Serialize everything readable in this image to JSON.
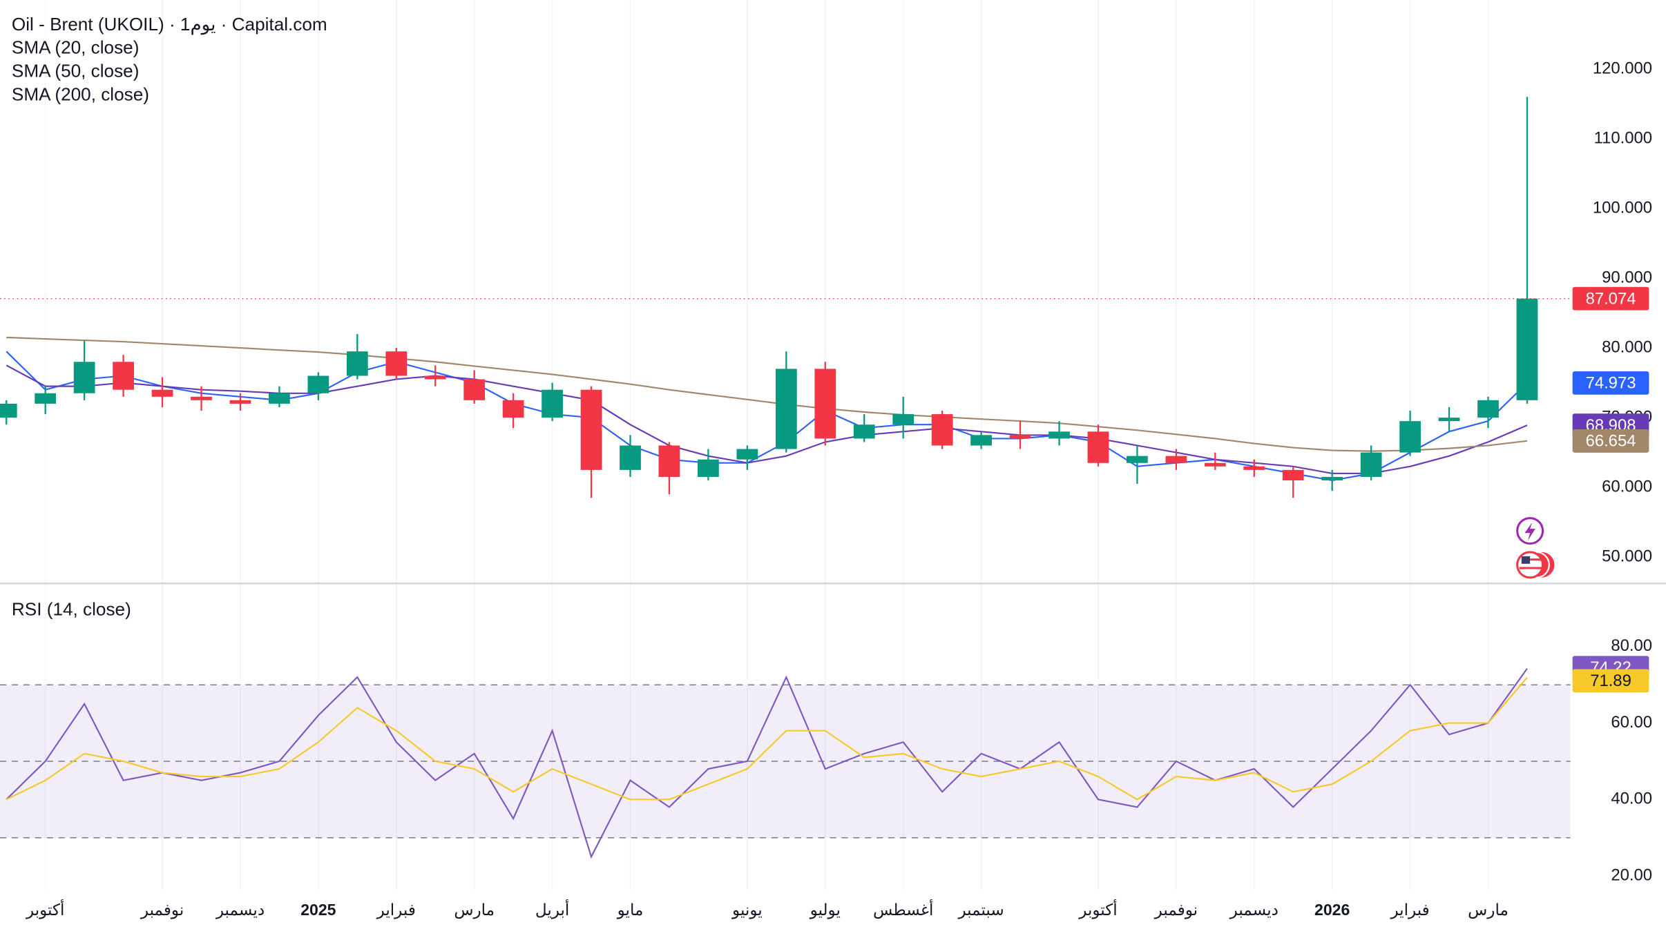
{
  "chart_data": [
    {
      "type": "candlestick",
      "title": "Oil - Brent (UKOIL) · 1يوم · Capital.com",
      "categories": [
        null,
        "أكتوبر",
        null,
        null,
        "نوفمبر",
        null,
        "ديسمبر",
        null,
        "2025",
        null,
        "فبراير",
        null,
        "مارس",
        null,
        "أبريل",
        null,
        "مايو",
        null,
        null,
        "يونيو",
        null,
        "يوليو",
        null,
        "أغسطس",
        null,
        "سبتمبر",
        null,
        null,
        "أكتوبر",
        null,
        "نوفمبر",
        null,
        "ديسمبر",
        null,
        "2026",
        null,
        "فبراير",
        null,
        "مارس",
        null
      ],
      "open": [
        70,
        72,
        73.5,
        78,
        74,
        73,
        72.5,
        72,
        73.5,
        76,
        79.5,
        76,
        75.5,
        72.5,
        70,
        74,
        62.5,
        66,
        61.5,
        64,
        65.5,
        77,
        67,
        69,
        70.5,
        66,
        67.5,
        67,
        68,
        63.5,
        64.5,
        63.5,
        63,
        62.5,
        61,
        61.5,
        65,
        69.5,
        70,
        72.5
      ],
      "high": [
        72.5,
        74.5,
        81,
        79,
        75.8,
        74.5,
        73.5,
        74.5,
        76.5,
        82,
        80,
        77.5,
        76.8,
        73.5,
        75,
        74.5,
        67.5,
        66.5,
        65.5,
        66,
        79.5,
        78,
        70.5,
        73,
        71,
        68,
        69.5,
        69.5,
        69,
        66,
        65.5,
        65,
        64,
        63,
        62.5,
        66,
        71,
        71.5,
        73,
        116
      ],
      "low": [
        69,
        70.5,
        72.5,
        73,
        71.5,
        71,
        71,
        71.5,
        72.5,
        75.5,
        75.5,
        74.5,
        72,
        68.5,
        69.5,
        58.5,
        61.5,
        59,
        61,
        62.5,
        65,
        66,
        66.5,
        67,
        65.5,
        65.5,
        65.5,
        66,
        63,
        60.5,
        62.5,
        62.5,
        61.5,
        58.5,
        59.5,
        61,
        64.5,
        68,
        68.5,
        72
      ],
      "close": [
        72,
        73.5,
        78,
        74,
        73,
        72.5,
        72,
        73.5,
        76,
        79.5,
        76,
        75.5,
        72.5,
        70,
        74,
        62.5,
        66,
        61.5,
        64,
        65.5,
        77,
        67,
        69,
        70.5,
        66,
        67.5,
        67,
        68,
        63.5,
        64.5,
        63.5,
        63,
        62.5,
        61,
        61.5,
        65,
        69.5,
        70,
        72.5,
        87.074
      ],
      "up_color": "#089981",
      "down_color": "#f23645",
      "last_price_color": "#f23645",
      "series": [
        {
          "name": "SMA (20, close)",
          "color": "#2962ff",
          "values": [
            79.5,
            74,
            75.5,
            76,
            74.5,
            73.5,
            73,
            72.5,
            73.5,
            76.5,
            78,
            76.5,
            75,
            72,
            70.5,
            70,
            66,
            64,
            63.5,
            63.5,
            66.5,
            71,
            68.5,
            69,
            69,
            67,
            67,
            67.5,
            66.5,
            63,
            63.5,
            64,
            63,
            62,
            61,
            62,
            65,
            68,
            69.5,
            74.973
          ]
        },
        {
          "name": "SMA (50, close)",
          "color": "#673ab7",
          "values": [
            77.5,
            74.5,
            74.5,
            75,
            74.5,
            74,
            73.8,
            73.5,
            73.5,
            74.5,
            75.5,
            76,
            75.5,
            74.5,
            73.5,
            72.5,
            69,
            66,
            64.5,
            63.5,
            64.5,
            66.5,
            67.5,
            68,
            68.5,
            68,
            67.5,
            67.5,
            67,
            66,
            65,
            64,
            63.5,
            63,
            62,
            62,
            63,
            64.5,
            66.5,
            68.908
          ]
        },
        {
          "name": "SMA (200, close)",
          "color": "#a1866a",
          "values": [
            81.5,
            81.3,
            81.1,
            80.9,
            80.6,
            80.3,
            80,
            79.7,
            79.4,
            79,
            78.5,
            78,
            77.4,
            76.8,
            76.2,
            75.5,
            74.8,
            74,
            73.3,
            72.6,
            71.9,
            71.3,
            70.8,
            70.4,
            70.1,
            69.8,
            69.5,
            69.2,
            68.7,
            68.2,
            67.6,
            67,
            66.3,
            65.7,
            65.3,
            65.2,
            65.3,
            65.6,
            66,
            66.654
          ]
        }
      ],
      "ylim": [
        46.3,
        129.9
      ],
      "yticks": [
        {
          "value": 50,
          "label": "50.000"
        },
        {
          "value": 60,
          "label": "60.000"
        },
        {
          "value": 70,
          "label": "70.000"
        },
        {
          "value": 80,
          "label": "80.000"
        },
        {
          "value": 90,
          "label": "90.000"
        },
        {
          "value": 100,
          "label": "100.000"
        },
        {
          "value": 110,
          "label": "110.000"
        },
        {
          "value": 120,
          "label": "120.000"
        }
      ],
      "grid": true
    },
    {
      "type": "line",
      "title": "RSI (14, close)",
      "series": [
        {
          "color": "#7e57c2",
          "values": [
            40,
            50,
            65,
            45,
            47,
            45,
            47,
            50,
            62,
            72,
            55,
            45,
            52,
            35,
            58,
            25,
            45,
            38,
            48,
            50,
            72,
            48,
            52,
            55,
            42,
            52,
            48,
            55,
            40,
            38,
            50,
            45,
            48,
            38,
            48,
            58,
            70,
            57,
            60,
            74.22
          ]
        },
        {
          "color": "#f7c928",
          "values": [
            40,
            45,
            52,
            50,
            47,
            46,
            46,
            48,
            55,
            64,
            58,
            50,
            48,
            42,
            48,
            44,
            40,
            40,
            44,
            48,
            58,
            58,
            51,
            52,
            48,
            46,
            48,
            50,
            46,
            40,
            46,
            45,
            47,
            42,
            44,
            50,
            58,
            60,
            60,
            71.89
          ]
        }
      ],
      "levels": [
        70,
        50,
        30
      ],
      "band_color": "#7e57c2",
      "ylim": [
        16.4,
        96.4
      ],
      "yticks": [
        {
          "value": 20,
          "label": "20.00"
        },
        {
          "value": 40,
          "label": "40.00"
        },
        {
          "value": 60,
          "label": "60.00"
        },
        {
          "value": 80,
          "label": "80.00"
        }
      ],
      "grid": true
    }
  ]
}
